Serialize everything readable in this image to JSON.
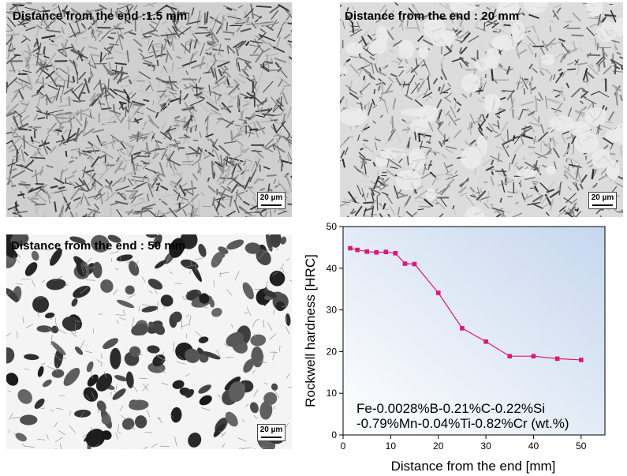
{
  "panels": [
    {
      "caption": "Distance from the end :1.5 mm",
      "scale": "20 µm"
    },
    {
      "caption": "Distance from the end : 20 mm",
      "scale": "20 µm"
    },
    {
      "caption": "Distance from the end : 50 mm",
      "scale": "20 µm"
    }
  ],
  "chart_data": {
    "type": "line",
    "xlabel": "Distance from the end [mm]",
    "ylabel": "Rockwell hardness [HRC]",
    "xlim": [
      0,
      55
    ],
    "ylim": [
      0,
      50
    ],
    "x_ticks": [
      0,
      10,
      20,
      30,
      40,
      50
    ],
    "y_ticks": [
      0,
      10,
      20,
      30,
      40,
      50
    ],
    "x": [
      1.5,
      3,
      5,
      7,
      9,
      11,
      13,
      15,
      20,
      25,
      30,
      35,
      40,
      45,
      50
    ],
    "series": [
      {
        "values": [
          44.8,
          44.4,
          44.0,
          43.8,
          43.9,
          43.6,
          41.1,
          41.0,
          34.1,
          25.6,
          22.4,
          18.9,
          18.9,
          18.3,
          18.0
        ]
      }
    ],
    "annotation": [
      "Fe-0.0028%B-0.21%C-0.22%Si",
      "-0.79%Mn-0.04%Ti-0.82%Cr (wt.%)"
    ],
    "line_color": "#e0157a",
    "background_gradient": [
      "#ffffff",
      "#c9d9ef"
    ],
    "grid": false
  }
}
